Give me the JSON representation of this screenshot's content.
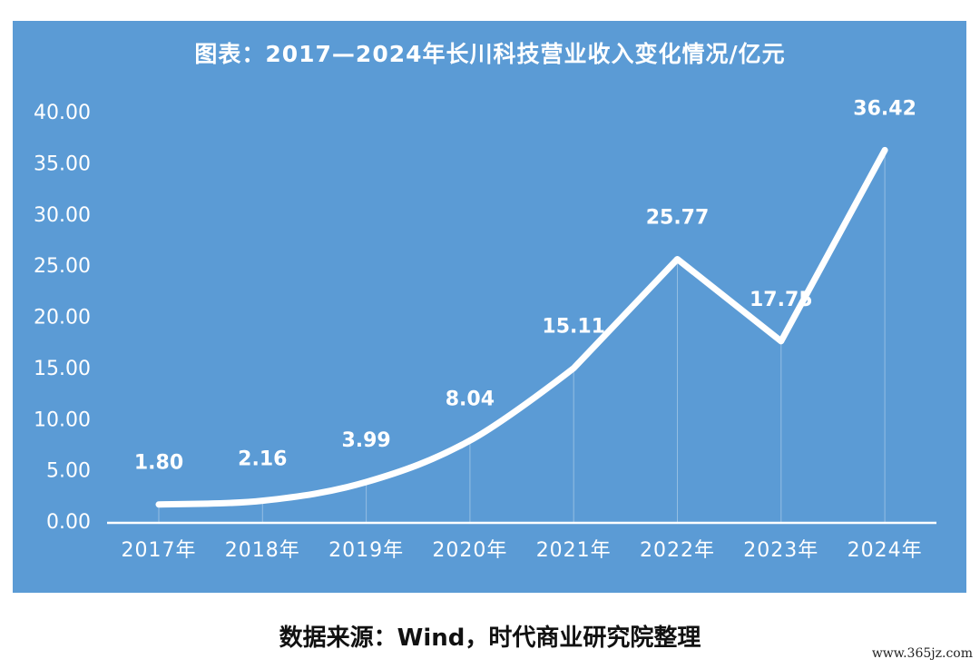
{
  "chart_data": {
    "type": "line",
    "title": "图表：2017—2024年长川科技营业收入变化情况/亿元",
    "categories": [
      "2017年",
      "2018年",
      "2019年",
      "2020年",
      "2021年",
      "2022年",
      "2023年",
      "2024年"
    ],
    "values": [
      1.8,
      2.16,
      3.99,
      8.04,
      15.11,
      25.77,
      17.75,
      36.42
    ],
    "data_labels": [
      "1.80",
      "2.16",
      "3.99",
      "8.04",
      "15.11",
      "25.77",
      "17.75",
      "36.42"
    ],
    "y_ticks": [
      "0.00",
      "5.00",
      "10.00",
      "15.00",
      "20.00",
      "25.00",
      "30.00",
      "35.00",
      "40.00"
    ],
    "ylim": [
      0,
      40
    ],
    "xlabel": "",
    "ylabel": "",
    "grid": false,
    "colors": {
      "background": "#5b9bd5",
      "line": "#ffffff",
      "text": "#ffffff"
    }
  },
  "source": "数据来源：Wind，时代商业研究院整理",
  "watermark": "www.365jz.com"
}
